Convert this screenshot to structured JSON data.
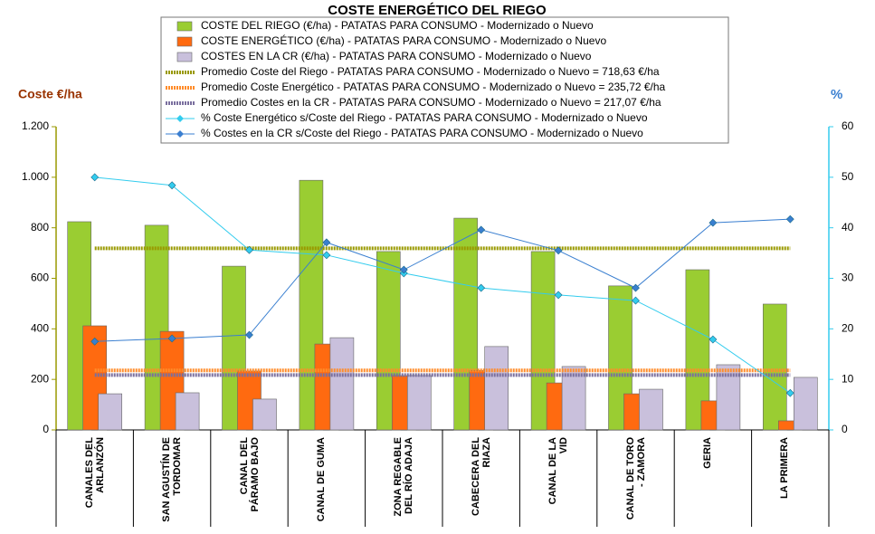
{
  "chart_data": {
    "type": "bar",
    "title": "COSTE ENERGÉTICO DEL RIEGO",
    "ylabel": "Coste €/ha",
    "y2label": "%",
    "categories": [
      "CANALES DEL\nARLANZÓN",
      "SAN AGUSTÍN DE\nTORDOMAR",
      "CANAL DEL\nPÁRAMO BAJO",
      "CANAL DE GUMA",
      "ZONA REGABLE\nDEL RÍO ADAJA",
      "CABECERA DEL\nRIAZA",
      "CANAL DE LA\nVID",
      "CANAL DE TORO\n- ZAMORA",
      "GERIA",
      "LA PRIMERA"
    ],
    "series": [
      {
        "name": "COSTE DEL RIEGO (€/ha) - PATATAS PARA CONSUMO - Modernizado o Nuevo",
        "type": "bar",
        "color": "#9acd32",
        "values": [
          824,
          810,
          648,
          988,
          706,
          838,
          706,
          570,
          634,
          498
        ]
      },
      {
        "name": "COSTE ENERGÉTICO (€/ha) - PATATAS PARA CONSUMO - Modernizado o Nuevo",
        "type": "bar",
        "color": "#ff6a10",
        "values": [
          412,
          390,
          233,
          340,
          215,
          235,
          186,
          143,
          115,
          36
        ]
      },
      {
        "name": "COSTES EN LA CR (€/ha) - PATATAS PARA CONSUMO - Modernizado o Nuevo",
        "type": "bar",
        "color": "#c9c0dc",
        "values": [
          143,
          147,
          122,
          365,
          215,
          330,
          251,
          161,
          258,
          208
        ]
      },
      {
        "name": "Promedio Coste del Riego - PATATAS PARA CONSUMO - Modernizado o Nuevo = 718,63 €/ha",
        "type": "hline",
        "color": "#999900",
        "value": 718.63
      },
      {
        "name": "Promedio Coste Energético - PATATAS PARA CONSUMO - Modernizado o Nuevo = 235,72 €/ha",
        "type": "hline",
        "color": "#ff8c2a",
        "value": 235.72
      },
      {
        "name": "Promedio Costes en la CR - PATATAS PARA CONSUMO - Modernizado o Nuevo = 217,07 €/ha",
        "type": "hline",
        "color": "#7a6f9e",
        "value": 217.07
      },
      {
        "name": "% Coste Energético s/Coste del Riego - PATATAS PARA CONSUMO - Modernizado o Nuevo",
        "type": "line",
        "axis": "y2",
        "color": "#33ccee",
        "values": [
          50,
          48.4,
          35.6,
          34.6,
          31,
          28.1,
          26.7,
          25.6,
          17.9,
          7.3
        ]
      },
      {
        "name": "% Costes en la CR s/Coste del Riego - PATATAS PARA CONSUMO - Modernizado o Nuevo",
        "type": "line",
        "axis": "y2",
        "color": "#3a7fd0",
        "values": [
          17.5,
          18.1,
          18.8,
          37.1,
          31.7,
          39.6,
          35.5,
          28.1,
          41,
          41.7
        ]
      }
    ],
    "ylim": [
      0,
      1200
    ],
    "yticks": [
      0,
      200,
      400,
      600,
      800,
      {
        "value": 1000,
        "label": "1.000"
      },
      {
        "value": 1200,
        "label": "1.200"
      }
    ],
    "y2lim": [
      0,
      60
    ],
    "y2ticks": [
      0,
      10,
      20,
      30,
      40,
      50,
      60
    ]
  }
}
